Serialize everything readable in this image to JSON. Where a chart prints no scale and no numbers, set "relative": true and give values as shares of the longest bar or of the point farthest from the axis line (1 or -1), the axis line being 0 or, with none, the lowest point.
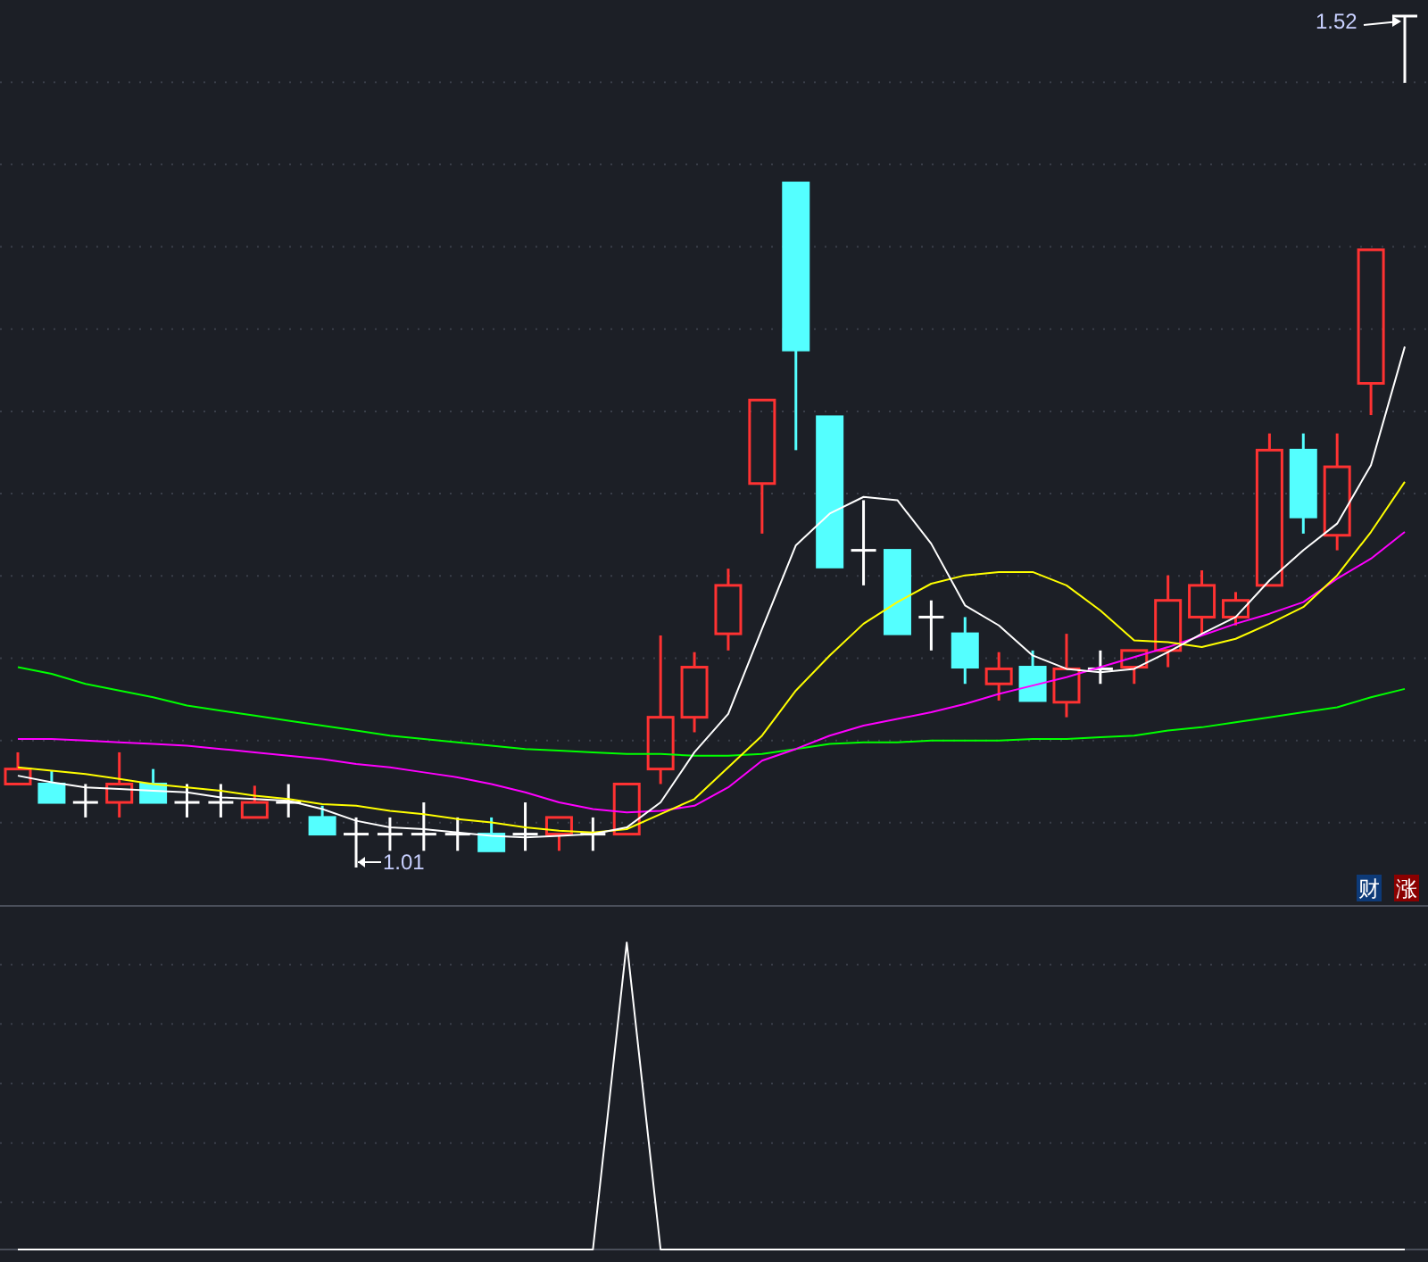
{
  "chart_data": [
    {
      "type": "candlestick",
      "tick_labels": false,
      "grid": true,
      "categories": [
        null,
        null,
        null,
        null,
        null,
        null,
        null,
        null,
        null,
        null,
        null,
        null,
        null,
        null,
        null,
        null,
        null,
        null,
        null,
        null,
        null,
        null,
        null,
        null,
        null,
        null,
        null,
        null,
        null,
        null,
        null,
        null,
        null,
        null,
        null,
        null,
        null,
        null,
        null,
        null,
        null,
        null
      ],
      "ohlc": [
        [
          1.06,
          1.079,
          1.06,
          1.069
        ],
        [
          1.06,
          1.068,
          1.049,
          1.049
        ],
        [
          1.049,
          1.06,
          1.04,
          1.049
        ],
        [
          1.049,
          1.079,
          1.04,
          1.06
        ],
        [
          1.06,
          1.069,
          1.049,
          1.049
        ],
        [
          1.049,
          1.06,
          1.04,
          1.049
        ],
        [
          1.049,
          1.06,
          1.04,
          1.049
        ],
        [
          1.04,
          1.059,
          1.04,
          1.049
        ],
        [
          1.049,
          1.06,
          1.04,
          1.049
        ],
        [
          1.04,
          1.047,
          1.03,
          1.03
        ],
        [
          1.03,
          1.04,
          1.01,
          1.03
        ],
        [
          1.03,
          1.04,
          1.02,
          1.03
        ],
        [
          1.03,
          1.049,
          1.02,
          1.03
        ],
        [
          1.03,
          1.04,
          1.02,
          1.03
        ],
        [
          1.03,
          1.04,
          1.02,
          1.02
        ],
        [
          1.03,
          1.049,
          1.02,
          1.03
        ],
        [
          1.03,
          1.04,
          1.02,
          1.04
        ],
        [
          1.03,
          1.04,
          1.02,
          1.03
        ],
        [
          1.03,
          1.06,
          1.03,
          1.06
        ],
        [
          1.069,
          1.149,
          1.06,
          1.1
        ],
        [
          1.1,
          1.139,
          1.091,
          1.13
        ],
        [
          1.15,
          1.189,
          1.14,
          1.179
        ],
        [
          1.24,
          1.29,
          1.21,
          1.29
        ],
        [
          1.42,
          1.42,
          1.26,
          1.32
        ],
        [
          1.28,
          1.28,
          1.19,
          1.19
        ],
        [
          1.2,
          1.23,
          1.179,
          1.2
        ],
        [
          1.2,
          1.2,
          1.15,
          1.15
        ],
        [
          1.16,
          1.17,
          1.14,
          1.16
        ],
        [
          1.15,
          1.16,
          1.12,
          1.13
        ],
        [
          1.12,
          1.139,
          1.11,
          1.129
        ],
        [
          1.13,
          1.14,
          1.11,
          1.11
        ],
        [
          1.109,
          1.15,
          1.1,
          1.129
        ],
        [
          1.129,
          1.14,
          1.12,
          1.129
        ],
        [
          1.13,
          1.14,
          1.12,
          1.14
        ],
        [
          1.14,
          1.185,
          1.13,
          1.17
        ],
        [
          1.16,
          1.188,
          1.15,
          1.179
        ],
        [
          1.16,
          1.175,
          1.155,
          1.17
        ],
        [
          1.179,
          1.27,
          1.179,
          1.26
        ],
        [
          1.26,
          1.27,
          1.21,
          1.22
        ],
        [
          1.209,
          1.27,
          1.2,
          1.25
        ],
        [
          1.3,
          1.38,
          1.281,
          1.38
        ],
        [
          1.52,
          1.52,
          1.48,
          1.52
        ]
      ],
      "colors": [
        "#ff3232",
        "#54ffff",
        "#ffffff",
        "#ff3232",
        "#54ffff",
        "#ffffff",
        "#ffffff",
        "#ff3232",
        "#ffffff",
        "#54ffff",
        "#ffffff",
        "#ffffff",
        "#ffffff",
        "#ffffff",
        "#54ffff",
        "#ffffff",
        "#ff3232",
        "#ffffff",
        "#ff3232",
        "#ff3232",
        "#ff3232",
        "#ff3232",
        "#ff3232",
        "#54ffff",
        "#54ffff",
        "#ffffff",
        "#54ffff",
        "#ffffff",
        "#54ffff",
        "#ff3232",
        "#54ffff",
        "#ff3232",
        "#ffffff",
        "#ff3232",
        "#ff3232",
        "#ff3232",
        "#ff3232",
        "#ff3232",
        "#54ffff",
        "#ff3232",
        "#ff3232",
        "#ffffff"
      ],
      "series": [
        {
          "type": "line",
          "color": "#00ff00",
          "values": [
            1.13,
            1.126,
            1.12,
            1.116,
            1.112,
            1.107,
            1.104,
            1.101,
            1.098,
            1.095,
            1.092,
            1.089,
            1.087,
            1.085,
            1.083,
            1.081,
            1.08,
            1.079,
            1.078,
            1.078,
            1.077,
            1.077,
            1.078,
            1.081,
            1.084,
            1.085,
            1.085,
            1.086,
            1.086,
            1.086,
            1.087,
            1.087,
            1.088,
            1.089,
            1.092,
            1.094,
            1.097,
            1.1,
            1.103,
            1.106,
            1.112,
            1.117
          ]
        },
        {
          "type": "line",
          "color": "#ff00ff",
          "values": [
            1.087,
            1.087,
            1.086,
            1.085,
            1.084,
            1.083,
            1.081,
            1.079,
            1.077,
            1.075,
            1.072,
            1.07,
            1.067,
            1.064,
            1.06,
            1.055,
            1.049,
            1.045,
            1.043,
            1.044,
            1.047,
            1.058,
            1.074,
            1.081,
            1.089,
            1.095,
            1.099,
            1.103,
            1.108,
            1.114,
            1.119,
            1.124,
            1.13,
            1.136,
            1.142,
            1.149,
            1.156,
            1.162,
            1.169,
            1.183,
            1.195,
            1.211
          ]
        },
        {
          "type": "line",
          "color": "#ffff00",
          "values": [
            1.07,
            1.068,
            1.066,
            1.063,
            1.06,
            1.058,
            1.056,
            1.053,
            1.051,
            1.048,
            1.047,
            1.044,
            1.042,
            1.039,
            1.037,
            1.034,
            1.032,
            1.031,
            1.033,
            1.042,
            1.051,
            1.07,
            1.089,
            1.116,
            1.137,
            1.156,
            1.169,
            1.18,
            1.185,
            1.187,
            1.187,
            1.179,
            1.164,
            1.146,
            1.145,
            1.142,
            1.147,
            1.156,
            1.166,
            1.185,
            1.211,
            1.241
          ]
        },
        {
          "type": "line",
          "color": "#ffffff",
          "values": [
            1.065,
            1.061,
            1.058,
            1.057,
            1.056,
            1.055,
            1.052,
            1.051,
            1.05,
            1.045,
            1.038,
            1.034,
            1.033,
            1.031,
            1.029,
            1.028,
            1.029,
            1.03,
            1.034,
            1.049,
            1.079,
            1.102,
            1.153,
            1.203,
            1.222,
            1.232,
            1.23,
            1.204,
            1.167,
            1.155,
            1.137,
            1.129,
            1.127,
            1.129,
            1.139,
            1.15,
            1.16,
            1.182,
            1.2,
            1.216,
            1.251,
            1.322
          ]
        }
      ],
      "annotations": [
        "1.52",
        "1.01",
        "财",
        "涨"
      ]
    },
    {
      "type": "line",
      "relative": true,
      "tick_labels": false,
      "grid": true,
      "categories": [
        null,
        null,
        null,
        null,
        null,
        null,
        null,
        null,
        null,
        null,
        null,
        null,
        null,
        null,
        null,
        null,
        null,
        null,
        null,
        null,
        null,
        null,
        null,
        null,
        null,
        null,
        null,
        null,
        null,
        null,
        null,
        null,
        null,
        null,
        null,
        null,
        null,
        null,
        null,
        null,
        null,
        null
      ],
      "series": [
        {
          "color": "#ffffff",
          "values": [
            0,
            0,
            0,
            0,
            0,
            0,
            0,
            0,
            0,
            0,
            0,
            0,
            0,
            0,
            0,
            0,
            0,
            0,
            1,
            0,
            0,
            0,
            0,
            0,
            0,
            0,
            0,
            0,
            0,
            0,
            0,
            0,
            0,
            0,
            0,
            0,
            0,
            0,
            0,
            0,
            0,
            0
          ]
        }
      ]
    }
  ]
}
